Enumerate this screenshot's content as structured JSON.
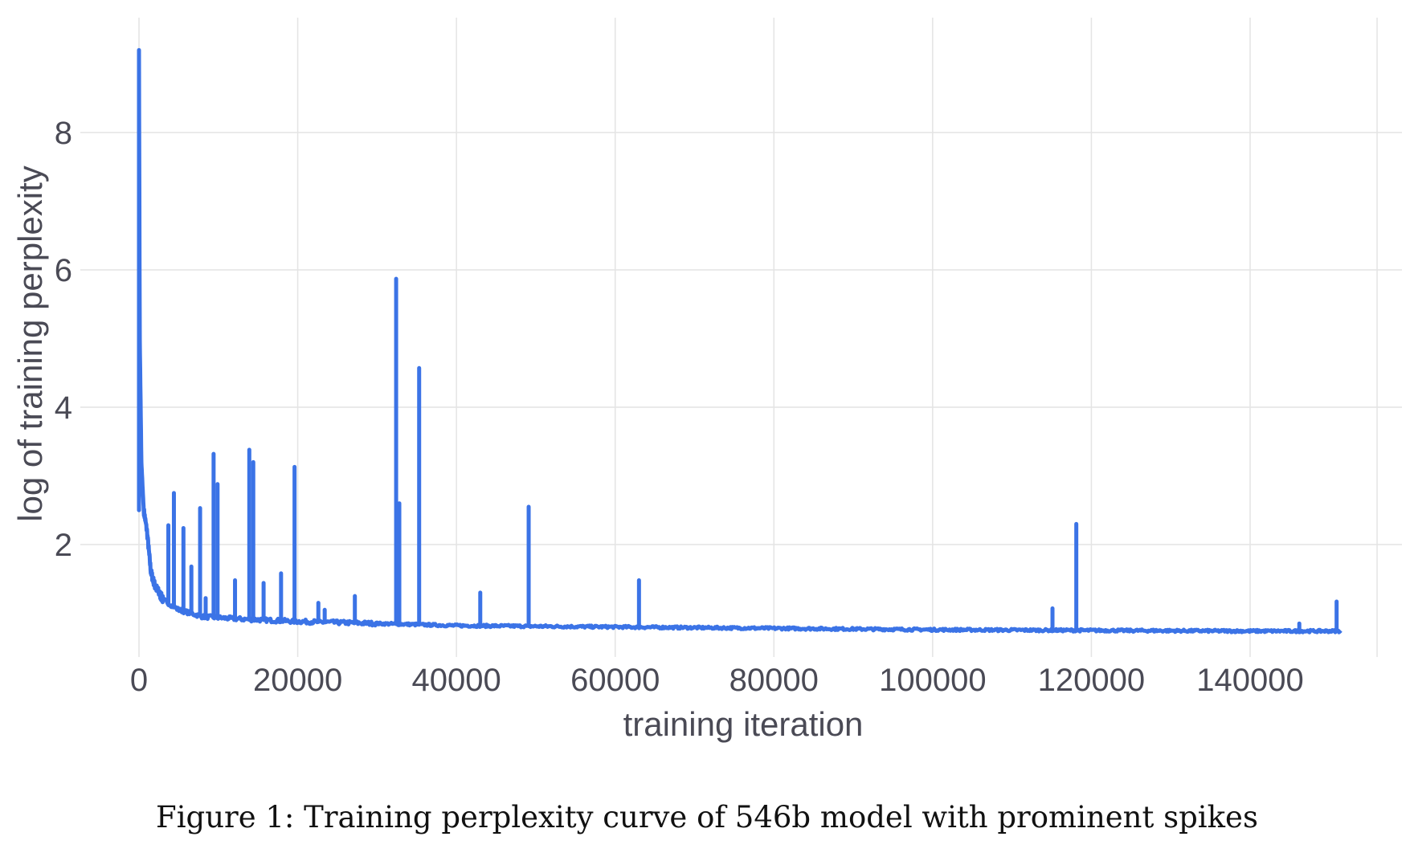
{
  "caption": "Figure 1: Training perplexity curve of 546b model with prominent spikes",
  "colors": {
    "line": "#3b73e6",
    "grid": "#e4e4e4",
    "text": "#4a4a55"
  },
  "chart_data": {
    "type": "line",
    "title": "",
    "xlabel": "training iteration",
    "ylabel": "log of training perplexity",
    "xlim": [
      -2000,
      157000
    ],
    "ylim": [
      0.55,
      9.3
    ],
    "x_ticks": [
      0,
      20000,
      40000,
      60000,
      80000,
      100000,
      120000,
      140000
    ],
    "y_ticks": [
      2,
      4,
      6,
      8
    ],
    "grid": true,
    "legend": "none",
    "series": [
      {
        "baseline": [
          [
            0,
            9.2
          ],
          [
            100,
            5.0
          ],
          [
            300,
            3.2
          ],
          [
            600,
            2.5
          ],
          [
            1000,
            2.2
          ],
          [
            1500,
            1.6
          ],
          [
            2000,
            1.4
          ],
          [
            3000,
            1.2
          ],
          [
            5000,
            1.05
          ],
          [
            8000,
            0.95
          ],
          [
            12000,
            0.92
          ],
          [
            20000,
            0.88
          ],
          [
            30000,
            0.85
          ],
          [
            40000,
            0.82
          ],
          [
            60000,
            0.8
          ],
          [
            80000,
            0.78
          ],
          [
            100000,
            0.76
          ],
          [
            120000,
            0.75
          ],
          [
            140000,
            0.74
          ],
          [
            151500,
            0.74
          ]
        ],
        "spikes": [
          [
            3700,
            2.28
          ],
          [
            4400,
            2.75
          ],
          [
            5600,
            2.24
          ],
          [
            6600,
            1.68
          ],
          [
            7700,
            2.53
          ],
          [
            8400,
            1.22
          ],
          [
            9400,
            3.32
          ],
          [
            9900,
            2.88
          ],
          [
            12100,
            1.48
          ],
          [
            13900,
            3.38
          ],
          [
            14400,
            3.2
          ],
          [
            15700,
            1.44
          ],
          [
            17900,
            1.58
          ],
          [
            19600,
            3.13
          ],
          [
            22600,
            1.15
          ],
          [
            23400,
            1.05
          ],
          [
            27200,
            1.25
          ],
          [
            32400,
            5.87
          ],
          [
            32800,
            2.6
          ],
          [
            35300,
            4.57
          ],
          [
            43000,
            1.3
          ],
          [
            49100,
            2.55
          ],
          [
            63000,
            1.48
          ],
          [
            115100,
            1.07
          ],
          [
            118100,
            2.3
          ],
          [
            146200,
            0.85
          ],
          [
            150900,
            1.17
          ]
        ]
      }
    ]
  }
}
